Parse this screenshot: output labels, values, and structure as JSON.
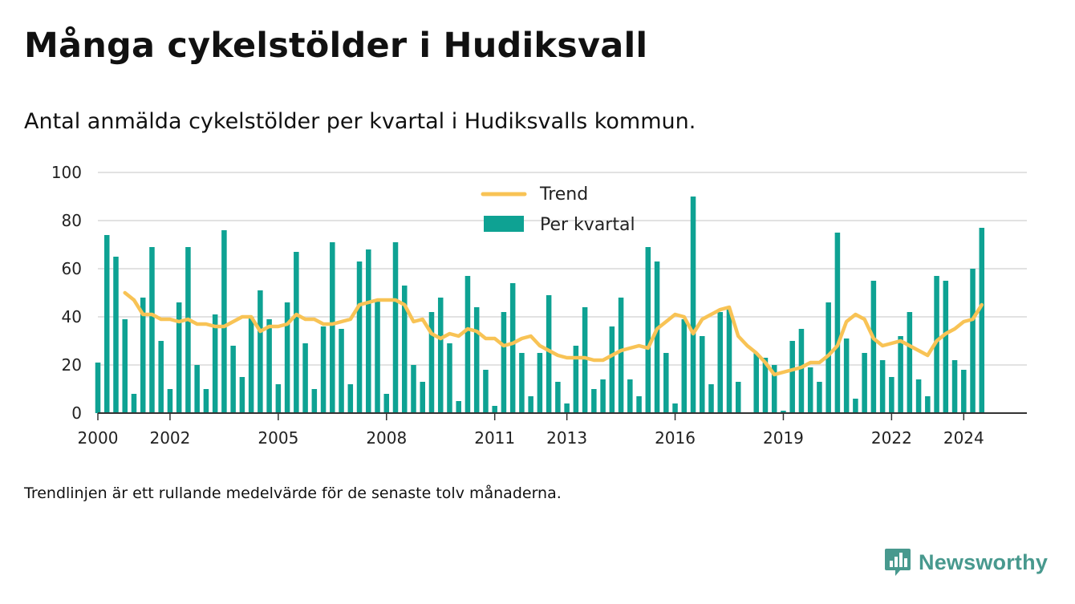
{
  "header": {
    "title": "Många cykelstölder i Hudiksvall",
    "subtitle": "Antal anmälda cykelstölder per kvartal i Hudiksvalls kommun."
  },
  "footnote": "Trendlinjen är ett rullande medelvärde för de senaste tolv månaderna.",
  "brand": {
    "name": "Newsworthy",
    "icon": "newsworthy-logo-icon",
    "color": "#48998e"
  },
  "colors": {
    "bar": "#0ea293",
    "trend": "#f8c355",
    "grid": "#d9d9d9",
    "axis": "#333333"
  },
  "chart_data": {
    "type": "bar",
    "title": "Många cykelstölder i Hudiksvall",
    "ylim": [
      0,
      100
    ],
    "yticks": [
      0,
      20,
      40,
      60,
      80,
      100
    ],
    "xlim": [
      2000,
      2025.75
    ],
    "xticks": [
      "2000",
      "2002",
      "2005",
      "2008",
      "2011",
      "2013",
      "2016",
      "2019",
      "2022",
      "2024"
    ],
    "grid": true,
    "legend_position": "top-center",
    "legend": [
      "Trend",
      "Per kvartal"
    ],
    "x_start": 2000,
    "series": [
      {
        "name": "Per kvartal",
        "type": "bar",
        "values": [
          21,
          74,
          65,
          39,
          8,
          48,
          69,
          30,
          10,
          46,
          69,
          20,
          10,
          41,
          76,
          28,
          15,
          40,
          51,
          39,
          12,
          46,
          67,
          29,
          10,
          36,
          71,
          35,
          12,
          63,
          68,
          47,
          8,
          71,
          53,
          20,
          13,
          42,
          48,
          29,
          5,
          57,
          44,
          18,
          3,
          42,
          54,
          25,
          7,
          25,
          49,
          13,
          4,
          28,
          44,
          10,
          14,
          36,
          48,
          14,
          7,
          69,
          63,
          25,
          4,
          39,
          90,
          32,
          12,
          42,
          43,
          13,
          0,
          25,
          23,
          20,
          1,
          30,
          35,
          19,
          13,
          46,
          75,
          31,
          6,
          25,
          55,
          22,
          15,
          32,
          42,
          14,
          7,
          57,
          55,
          22,
          18,
          60,
          77
        ]
      },
      {
        "name": "Trend",
        "type": "line",
        "points": [
          [
            2000.75,
            50
          ],
          [
            2001.0,
            47
          ],
          [
            2001.25,
            41
          ],
          [
            2001.5,
            41
          ],
          [
            2001.75,
            39
          ],
          [
            2002.0,
            39
          ],
          [
            2002.25,
            38
          ],
          [
            2002.5,
            39
          ],
          [
            2002.75,
            37
          ],
          [
            2003.0,
            37
          ],
          [
            2003.25,
            36
          ],
          [
            2003.5,
            36
          ],
          [
            2003.75,
            38
          ],
          [
            2004.0,
            40
          ],
          [
            2004.25,
            40
          ],
          [
            2004.5,
            34
          ],
          [
            2004.75,
            36
          ],
          [
            2005.0,
            36
          ],
          [
            2005.25,
            37
          ],
          [
            2005.5,
            41
          ],
          [
            2005.75,
            39
          ],
          [
            2006.0,
            39
          ],
          [
            2006.25,
            37
          ],
          [
            2006.5,
            37
          ],
          [
            2006.75,
            38
          ],
          [
            2007.0,
            39
          ],
          [
            2007.25,
            45
          ],
          [
            2007.5,
            46
          ],
          [
            2007.75,
            47
          ],
          [
            2008.0,
            47
          ],
          [
            2008.25,
            47
          ],
          [
            2008.5,
            45
          ],
          [
            2008.75,
            38
          ],
          [
            2009.0,
            39
          ],
          [
            2009.25,
            33
          ],
          [
            2009.5,
            31
          ],
          [
            2009.75,
            33
          ],
          [
            2010.0,
            32
          ],
          [
            2010.25,
            35
          ],
          [
            2010.5,
            34
          ],
          [
            2010.75,
            31
          ],
          [
            2011.0,
            31
          ],
          [
            2011.25,
            28
          ],
          [
            2011.5,
            29
          ],
          [
            2011.75,
            31
          ],
          [
            2012.0,
            32
          ],
          [
            2012.25,
            28
          ],
          [
            2012.5,
            26
          ],
          [
            2012.75,
            24
          ],
          [
            2013.0,
            23
          ],
          [
            2013.25,
            23
          ],
          [
            2013.5,
            23
          ],
          [
            2013.75,
            22
          ],
          [
            2014.0,
            22
          ],
          [
            2014.25,
            24
          ],
          [
            2014.5,
            26
          ],
          [
            2014.75,
            27
          ],
          [
            2015.0,
            28
          ],
          [
            2015.25,
            27
          ],
          [
            2015.5,
            35
          ],
          [
            2015.75,
            38
          ],
          [
            2016.0,
            41
          ],
          [
            2016.25,
            40
          ],
          [
            2016.5,
            33
          ],
          [
            2016.75,
            39
          ],
          [
            2017.0,
            41
          ],
          [
            2017.25,
            43
          ],
          [
            2017.5,
            44
          ],
          [
            2017.75,
            32
          ],
          [
            2018.0,
            28
          ],
          [
            2018.25,
            25
          ],
          [
            2018.5,
            21
          ],
          [
            2018.75,
            16
          ],
          [
            2019.0,
            17
          ],
          [
            2019.25,
            18
          ],
          [
            2019.5,
            19
          ],
          [
            2019.75,
            21
          ],
          [
            2020.0,
            21
          ],
          [
            2020.25,
            24
          ],
          [
            2020.5,
            28
          ],
          [
            2020.75,
            38
          ],
          [
            2021.0,
            41
          ],
          [
            2021.25,
            39
          ],
          [
            2021.5,
            31
          ],
          [
            2021.75,
            28
          ],
          [
            2022.0,
            29
          ],
          [
            2022.25,
            30
          ],
          [
            2022.5,
            28
          ],
          [
            2022.75,
            26
          ],
          [
            2023.0,
            24
          ],
          [
            2023.25,
            30
          ],
          [
            2023.5,
            33
          ],
          [
            2023.75,
            35
          ],
          [
            2024.0,
            38
          ],
          [
            2024.25,
            39
          ],
          [
            2024.5,
            45
          ]
        ]
      }
    ]
  }
}
